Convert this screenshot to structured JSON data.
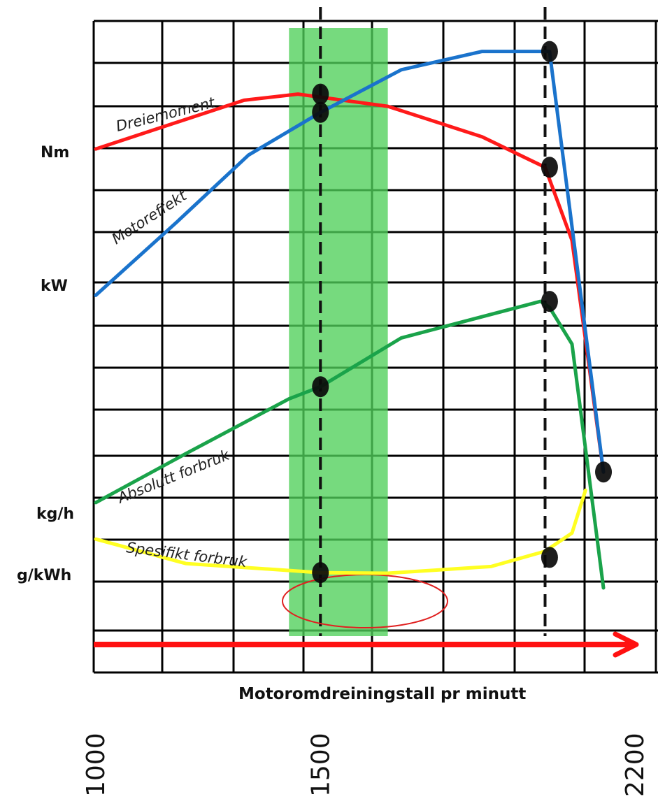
{
  "chart_data": {
    "type": "line",
    "title": "",
    "xlabel": "Motoromdreiningstall pr minutt",
    "x_ticks": [
      "1000",
      "1500",
      "2200"
    ],
    "x_tick_values": [
      1000,
      1500,
      2200
    ],
    "xlim": [
      1000,
      2200
    ],
    "y_axis_labels": [
      "Nm",
      "kW",
      "kg/h",
      "g/kWh"
    ],
    "ylim": [
      0,
      100
    ],
    "grid": true,
    "highlight_band_x": [
      1430,
      1650
    ],
    "marker_lines_x": [
      1500,
      2000
    ],
    "series": [
      {
        "name": "Dreiemoment",
        "color": "#ff1a1a",
        "x": [
          1000,
          1330,
          1450,
          1650,
          1860,
          2000,
          2060,
          2130
        ],
        "y": [
          79,
          87,
          88,
          86,
          81,
          76,
          64,
          26
        ]
      },
      {
        "name": "Motoreffekt",
        "color": "#1a73cc",
        "x": [
          1000,
          1180,
          1340,
          1500,
          1680,
          1860,
          2010,
          2130
        ],
        "y": [
          55,
          67,
          78,
          85,
          92,
          95,
          95,
          26
        ]
      },
      {
        "name": "Absolutt forbruk",
        "color": "#1aa34a",
        "x": [
          1000,
          1200,
          1430,
          1500,
          1680,
          1990,
          2010,
          2060,
          2130
        ],
        "y": [
          21,
          29,
          38,
          40,
          48,
          54,
          53,
          47,
          7
        ]
      },
      {
        "name": "Spesifikt forbruk",
        "color": "#ffff22",
        "x": [
          1000,
          1200,
          1400,
          1500,
          1650,
          1880,
          2000,
          2060,
          2090
        ],
        "y": [
          15,
          11,
          10,
          9.5,
          9.4,
          10.5,
          13,
          16,
          23
        ]
      }
    ],
    "markers": [
      {
        "x": 1500,
        "y": 88
      },
      {
        "x": 1500,
        "y": 85
      },
      {
        "x": 1500,
        "y": 40
      },
      {
        "x": 1500,
        "y": 9.5
      },
      {
        "x": 2010,
        "y": 95
      },
      {
        "x": 2010,
        "y": 76
      },
      {
        "x": 2010,
        "y": 54
      },
      {
        "x": 2010,
        "y": 12
      },
      {
        "x": 2130,
        "y": 26
      }
    ]
  }
}
